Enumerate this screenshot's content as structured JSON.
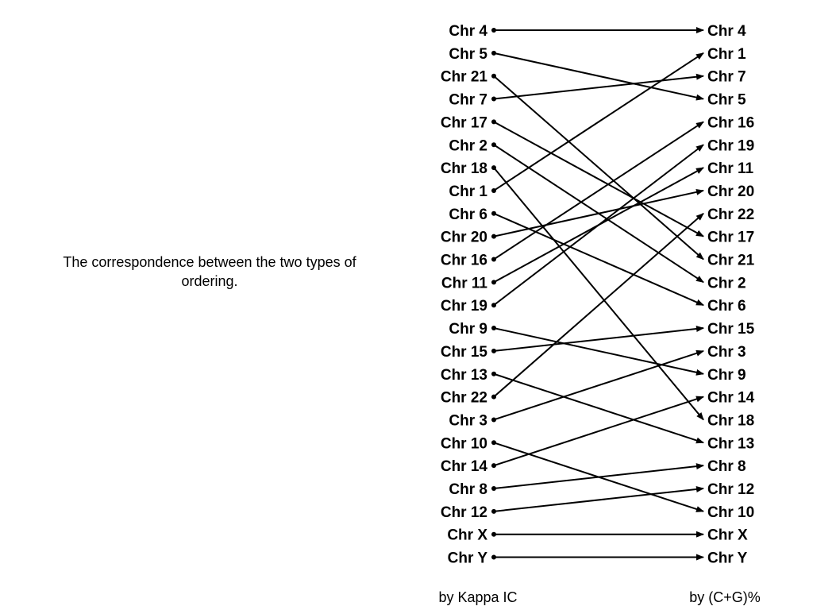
{
  "caption": "The correspondence between the two types of ordering.",
  "left_column": {
    "footer": "by Kappa IC",
    "items": [
      "Chr 4",
      "Chr 5",
      "Chr 21",
      "Chr 7",
      "Chr 17",
      "Chr 2",
      "Chr 18",
      "Chr 1",
      "Chr 6",
      "Chr 20",
      "Chr 16",
      "Chr 11",
      "Chr 19",
      "Chr 9",
      "Chr 15",
      "Chr 13",
      "Chr 22",
      "Chr 3",
      "Chr 10",
      "Chr 14",
      "Chr 8",
      "Chr 12",
      "Chr X",
      "Chr Y"
    ]
  },
  "right_column": {
    "footer": "by (C+G)%",
    "items": [
      "Chr 4",
      "Chr 1",
      "Chr 7",
      "Chr 5",
      "Chr 16",
      "Chr 19",
      "Chr 11",
      "Chr 20",
      "Chr 22",
      "Chr 17",
      "Chr 21",
      "Chr 2",
      "Chr 6",
      "Chr 15",
      "Chr 3",
      "Chr 9",
      "Chr 14",
      "Chr 18",
      "Chr 13",
      "Chr 8",
      "Chr 12",
      "Chr 10",
      "Chr X",
      "Chr Y"
    ]
  },
  "colors": {
    "line": "#000000",
    "text": "#000000",
    "background": "#ffffff"
  }
}
